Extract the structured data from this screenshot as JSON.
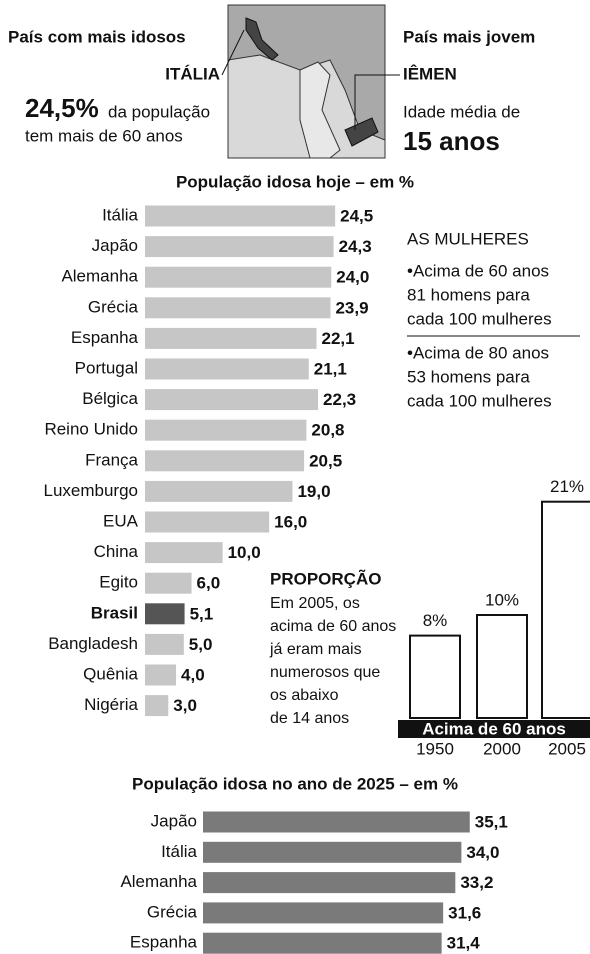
{
  "header": {
    "left_title": "País com mais idosos",
    "left_country": "ITÁLIA",
    "left_value": "24,5%",
    "left_text": [
      "da população",
      "tem mais de 60 anos"
    ],
    "right_title": "País mais jovem",
    "right_country": "IÊMEN",
    "right_text": "Idade média de",
    "right_value": "15 anos"
  },
  "chart_data": [
    {
      "type": "hbar",
      "title": "População idosa hoje – em %",
      "categories": [
        "Itália",
        "Japão",
        "Alemanha",
        "Grécia",
        "Espanha",
        "Portugal",
        "Bélgica",
        "Reino Unido",
        "França",
        "Luxemburgo",
        "EUA",
        "China",
        "Egito",
        "Brasil",
        "Bangladesh",
        "Quênia",
        "Nigéria"
      ],
      "values": [
        24.5,
        24.3,
        24.0,
        23.9,
        22.1,
        21.1,
        22.3,
        20.8,
        20.5,
        19.0,
        16.0,
        10.0,
        6.0,
        5.1,
        5.0,
        4.0,
        3.0
      ],
      "value_labels": [
        "24,5",
        "24,3",
        "24,0",
        "23,9",
        "22,1",
        "21,1",
        "22,3",
        "20,8",
        "20,5",
        "19,0",
        "16,0",
        "10,0",
        "6,0",
        "5,1",
        "5,0",
        "4,0",
        "3,0"
      ],
      "colors": [
        "#c6c6c6",
        "#c6c6c6",
        "#c6c6c6",
        "#c6c6c6",
        "#c6c6c6",
        "#c6c6c6",
        "#c6c6c6",
        "#c6c6c6",
        "#c6c6c6",
        "#c6c6c6",
        "#c6c6c6",
        "#c6c6c6",
        "#c6c6c6",
        "#555555",
        "#c6c6c6",
        "#c6c6c6",
        "#c6c6c6"
      ]
    },
    {
      "type": "bar",
      "title": "Acima de 60 anos",
      "categories": [
        "1950",
        "2000",
        "2005"
      ],
      "values": [
        8,
        10,
        21
      ],
      "value_labels": [
        "8%",
        "10%",
        "21%"
      ],
      "color": "#ffffff"
    },
    {
      "type": "hbar",
      "title": "População idosa no ano de 2025 – em %",
      "categories": [
        "Japão",
        "Itália",
        "Alemanha",
        "Grécia",
        "Espanha"
      ],
      "values": [
        35.1,
        34.0,
        33.2,
        31.6,
        31.4
      ],
      "value_labels": [
        "35,1",
        "34,0",
        "33,2",
        "31,6",
        "31,4"
      ],
      "color": "#7a7a7a"
    }
  ],
  "sidebar": {
    "title": "AS MULHERES",
    "items": [
      [
        "•Acima de 60 anos",
        "81 homens para",
        "cada 100 mulheres"
      ],
      [
        "•Acima de 80 anos",
        "53 homens para",
        "cada 100 mulheres"
      ]
    ]
  },
  "proportion": {
    "title": "PROPORÇÃO",
    "lines": [
      "Em 2005, os",
      "acima de 60 anos",
      "já eram mais",
      "numerosos que",
      "os abaixo",
      "de 14 anos"
    ]
  }
}
